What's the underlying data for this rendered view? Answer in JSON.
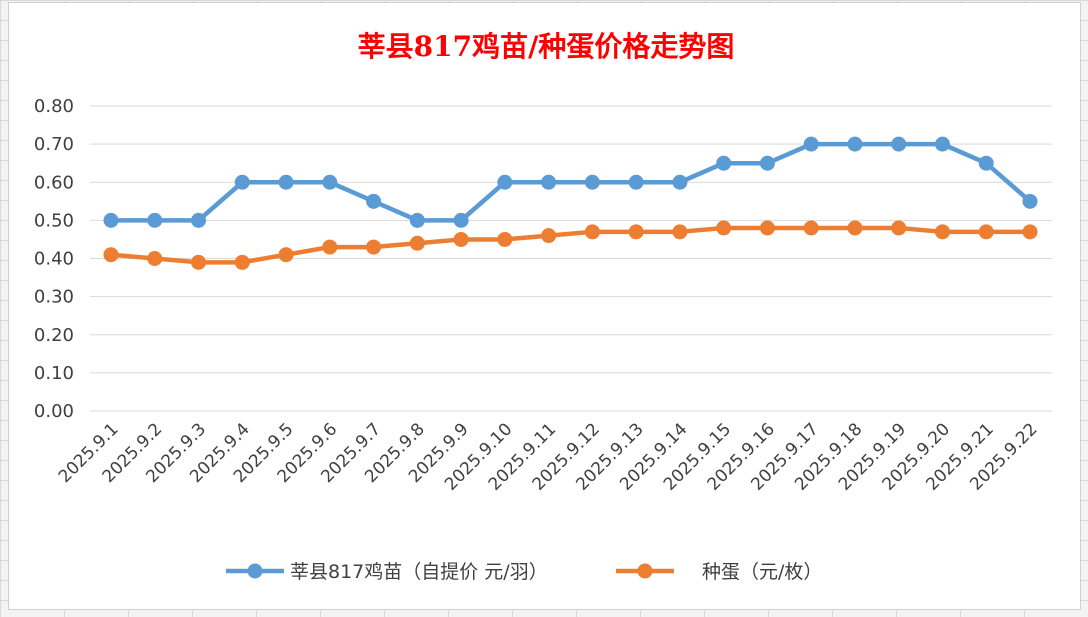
{
  "chart_data": {
    "type": "line",
    "title": "莘县817鸡苗/种蛋价格走势图",
    "categories": [
      "2025.9.1",
      "2025.9.2",
      "2025.9.3",
      "2025.9.4",
      "2025.9.5",
      "2025.9.6",
      "2025.9.7",
      "2025.9.8",
      "2025.9.9",
      "2025.9.10",
      "2025.9.11",
      "2025.9.12",
      "2025.9.13",
      "2025.9.14",
      "2025.9.15",
      "2025.9.16",
      "2025.9.17",
      "2025.9.18",
      "2025.9.19",
      "2025.9.20",
      "2025.9.21",
      "2025.9.22"
    ],
    "series": [
      {
        "name": "莘县817鸡苗（自提价 元/羽）",
        "color": "#5b9bd5",
        "values": [
          0.5,
          0.5,
          0.5,
          0.6,
          0.6,
          0.6,
          0.55,
          0.5,
          0.5,
          0.6,
          0.6,
          0.6,
          0.6,
          0.6,
          0.65,
          0.65,
          0.7,
          0.7,
          0.7,
          0.7,
          0.65,
          0.55
        ]
      },
      {
        "name": "种蛋（元/枚）",
        "color": "#ed7d31",
        "values": [
          0.41,
          0.4,
          0.39,
          0.39,
          0.41,
          0.43,
          0.43,
          0.44,
          0.45,
          0.45,
          0.46,
          0.47,
          0.47,
          0.47,
          0.48,
          0.48,
          0.48,
          0.48,
          0.48,
          0.47,
          0.47,
          0.47
        ]
      }
    ],
    "ylim": [
      0,
      0.8
    ],
    "yticks": [
      "0.00",
      "0.10",
      "0.20",
      "0.30",
      "0.40",
      "0.50",
      "0.60",
      "0.70",
      "0.80"
    ],
    "grid": true,
    "legend": "bottom",
    "title_color": "#ff0000"
  }
}
